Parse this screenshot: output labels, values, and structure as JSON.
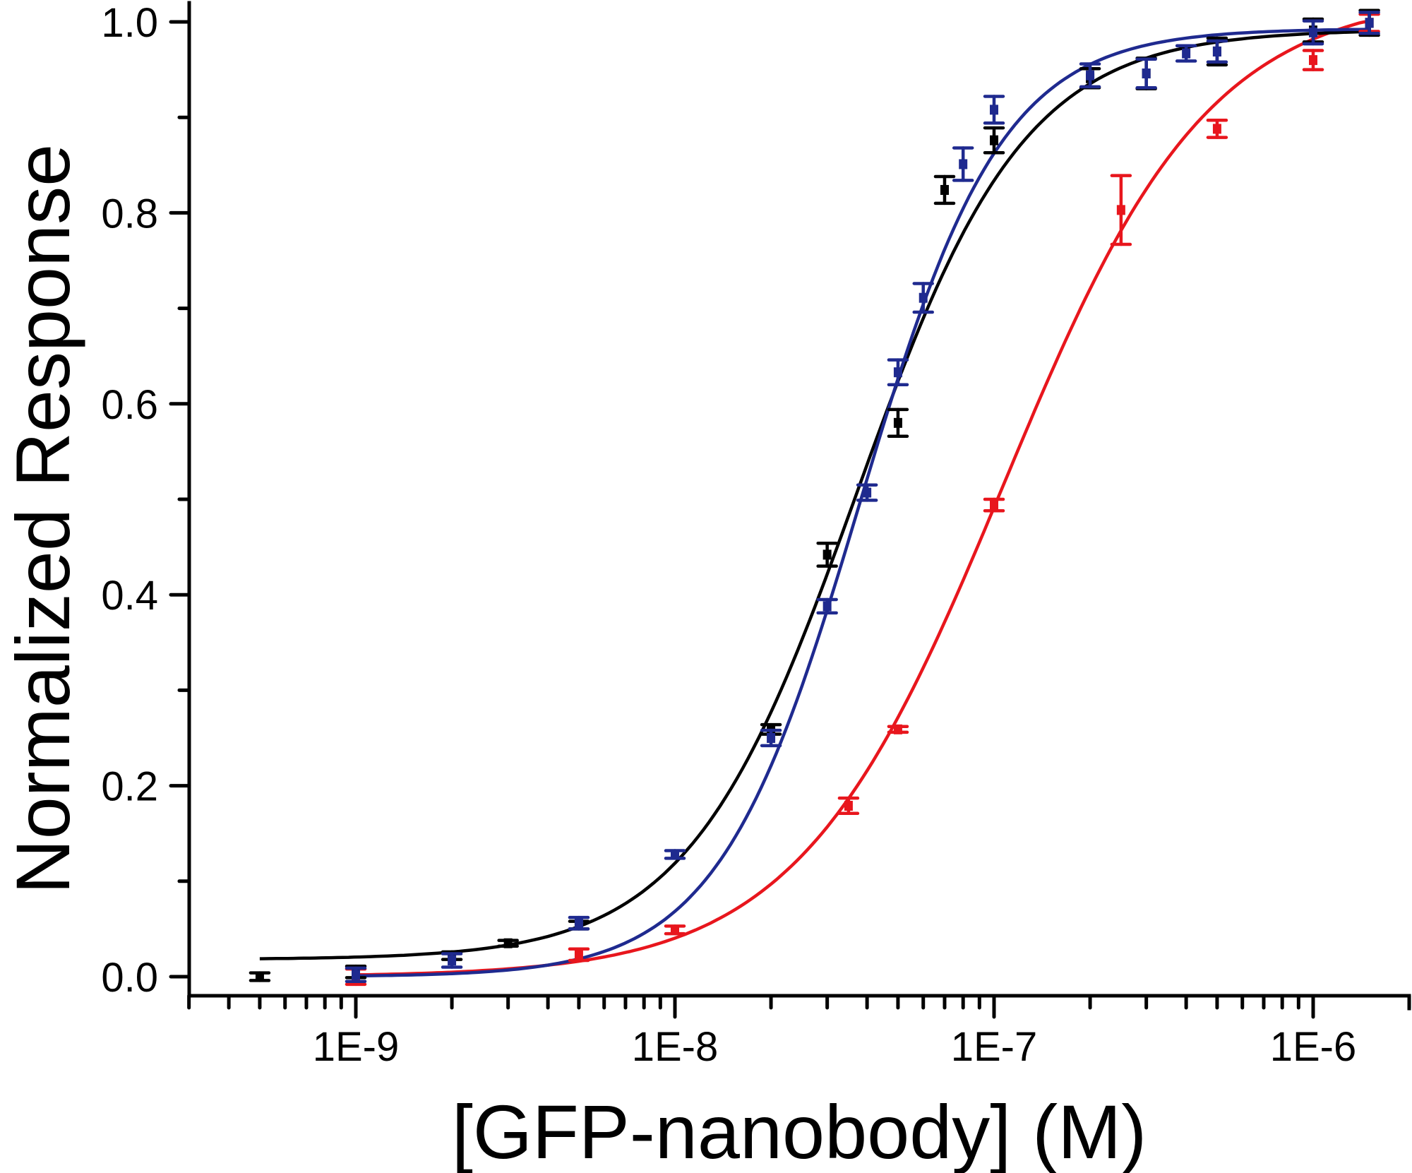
{
  "chart_data": {
    "type": "scatter",
    "title": "",
    "xlabel": "[GFP-nanobody] (M)",
    "ylabel": "Normalized Response",
    "xscale": "log",
    "xlim": [
      3e-10,
      2e-06
    ],
    "ylim": [
      -0.05,
      1.02
    ],
    "x_ticks": [
      {
        "value": 1e-09,
        "label": "1E-9"
      },
      {
        "value": 1e-08,
        "label": "1E-8"
      },
      {
        "value": 1e-07,
        "label": "1E-7"
      },
      {
        "value": 1e-06,
        "label": "1E-6"
      }
    ],
    "y_ticks": [
      {
        "value": 0.0,
        "label": "0.0"
      },
      {
        "value": 0.2,
        "label": "0.2"
      },
      {
        "value": 0.4,
        "label": "0.4"
      },
      {
        "value": 0.6,
        "label": "0.6"
      },
      {
        "value": 0.8,
        "label": "0.8"
      },
      {
        "value": 1.0,
        "label": "1.0"
      }
    ],
    "y_minor_ticks": [
      0.1,
      0.3,
      0.5,
      0.7,
      0.9
    ],
    "grid": false,
    "legend": "none",
    "series": [
      {
        "name": "black",
        "color": "#000000",
        "points": [
          {
            "x": 5e-10,
            "y": 0.0,
            "err": 0.004
          },
          {
            "x": 1e-09,
            "y": 0.005,
            "err": 0.006
          },
          {
            "x": 2e-09,
            "y": 0.022,
            "err": 0.004
          },
          {
            "x": 3e-09,
            "y": 0.035,
            "err": 0.003
          },
          {
            "x": 5e-09,
            "y": 0.054,
            "err": 0.004
          },
          {
            "x": 2e-08,
            "y": 0.259,
            "err": 0.005
          },
          {
            "x": 3e-08,
            "y": 0.442,
            "err": 0.012
          },
          {
            "x": 5e-08,
            "y": 0.58,
            "err": 0.014
          },
          {
            "x": 7e-08,
            "y": 0.824,
            "err": 0.014
          },
          {
            "x": 1e-07,
            "y": 0.876,
            "err": 0.013
          },
          {
            "x": 2e-07,
            "y": 0.941,
            "err": 0.01
          },
          {
            "x": 3e-07,
            "y": 0.946,
            "err": 0.016
          },
          {
            "x": 5e-07,
            "y": 0.969,
            "err": 0.014
          },
          {
            "x": 1e-06,
            "y": 0.991,
            "err": 0.012
          },
          {
            "x": 1.5e-06,
            "y": 0.999,
            "err": 0.013
          }
        ],
        "fit": {
          "model": "hill",
          "bottom": 0.018,
          "top": 0.992,
          "ec50": 3.7e-08,
          "hill_slope": 1.65,
          "x_range": [
            5e-10,
            1.5e-06
          ]
        }
      },
      {
        "name": "blue",
        "color": "#1f2a8f",
        "points": [
          {
            "x": 1e-09,
            "y": 0.002,
            "err": 0.007
          },
          {
            "x": 2e-09,
            "y": 0.017,
            "err": 0.007
          },
          {
            "x": 5e-09,
            "y": 0.056,
            "err": 0.006
          },
          {
            "x": 1e-08,
            "y": 0.128,
            "err": 0.004
          },
          {
            "x": 2e-08,
            "y": 0.25,
            "err": 0.008
          },
          {
            "x": 3e-08,
            "y": 0.388,
            "err": 0.007
          },
          {
            "x": 4e-08,
            "y": 0.507,
            "err": 0.008
          },
          {
            "x": 5e-08,
            "y": 0.633,
            "err": 0.013
          },
          {
            "x": 6e-08,
            "y": 0.711,
            "err": 0.015
          },
          {
            "x": 8e-08,
            "y": 0.851,
            "err": 0.017
          },
          {
            "x": 1e-07,
            "y": 0.908,
            "err": 0.014
          },
          {
            "x": 2e-07,
            "y": 0.944,
            "err": 0.012
          },
          {
            "x": 3e-07,
            "y": 0.946,
            "err": 0.015
          },
          {
            "x": 4e-07,
            "y": 0.967,
            "err": 0.008
          },
          {
            "x": 5e-07,
            "y": 0.969,
            "err": 0.011
          },
          {
            "x": 1e-06,
            "y": 0.989,
            "err": 0.012
          },
          {
            "x": 1.5e-06,
            "y": 0.999,
            "err": 0.011
          }
        ],
        "fit": {
          "model": "hill",
          "bottom": 0.0,
          "top": 0.993,
          "ec50": 3.8e-08,
          "hill_slope": 1.95,
          "x_range": [
            1e-09,
            1.5e-06
          ]
        }
      },
      {
        "name": "red",
        "color": "#e8161d",
        "points": [
          {
            "x": 1e-09,
            "y": 0.0,
            "err": 0.008
          },
          {
            "x": 5e-09,
            "y": 0.023,
            "err": 0.006
          },
          {
            "x": 1e-08,
            "y": 0.049,
            "err": 0.004
          },
          {
            "x": 3.5e-08,
            "y": 0.179,
            "err": 0.008
          },
          {
            "x": 5e-08,
            "y": 0.259,
            "err": 0.003
          },
          {
            "x": 1e-07,
            "y": 0.494,
            "err": 0.006
          },
          {
            "x": 2.5e-07,
            "y": 0.803,
            "err": 0.036
          },
          {
            "x": 5e-07,
            "y": 0.888,
            "err": 0.009
          },
          {
            "x": 1e-06,
            "y": 0.96,
            "err": 0.01
          },
          {
            "x": 1.5e-06,
            "y": 0.999,
            "err": 0.009
          }
        ],
        "fit": {
          "model": "hill",
          "bottom": 0.0,
          "top": 1.03,
          "ec50": 1.07e-07,
          "hill_slope": 1.35,
          "x_range": [
            1e-09,
            1.5e-06
          ]
        }
      }
    ]
  }
}
